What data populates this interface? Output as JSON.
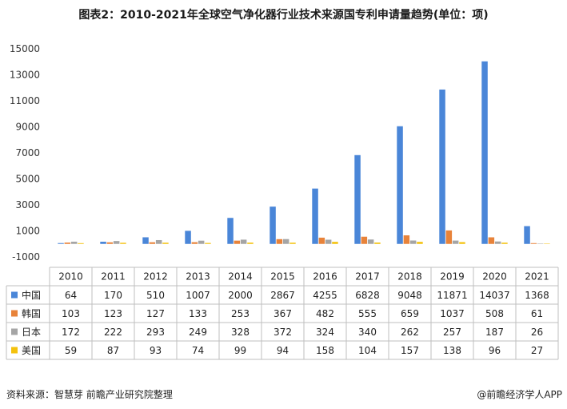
{
  "title": "图表2：2010-2021年全球空气净化器行业技术来源国专利申请量趋势(单位：项)",
  "footer": {
    "source": "资料来源：智慧芽 前瞻产业研究院整理",
    "brand": "@前瞻经济学人APP"
  },
  "colors": {
    "中国": "#4a86d8",
    "韩国": "#e8833a",
    "日本": "#a5a5a5",
    "美国": "#f4c20d"
  },
  "chart_data": {
    "type": "bar",
    "title": "图表2：2010-2021年全球空气净化器行业技术来源国专利申请量趋势(单位：项)",
    "categories": [
      "2010",
      "2011",
      "2012",
      "2013",
      "2014",
      "2015",
      "2016",
      "2017",
      "2018",
      "2019",
      "2020",
      "2021"
    ],
    "series": [
      {
        "name": "中国",
        "values": [
          64,
          170,
          510,
          1007,
          2000,
          2867,
          4255,
          6828,
          9048,
          11871,
          14037,
          1368
        ]
      },
      {
        "name": "韩国",
        "values": [
          103,
          123,
          127,
          133,
          253,
          367,
          482,
          555,
          659,
          1037,
          508,
          61
        ]
      },
      {
        "name": "日本",
        "values": [
          172,
          222,
          293,
          249,
          328,
          372,
          324,
          340,
          262,
          257,
          187,
          26
        ]
      },
      {
        "name": "美国",
        "values": [
          59,
          87,
          93,
          74,
          99,
          94,
          158,
          104,
          157,
          138,
          96,
          27
        ]
      }
    ],
    "yticks": [
      -1000,
      1000,
      3000,
      5000,
      7000,
      9000,
      11000,
      13000,
      15000
    ],
    "ytick_labels": [
      "-1000",
      "1000",
      "3000",
      "5000",
      "7000",
      "9000",
      "11000",
      "13000",
      "15000"
    ],
    "ylim": [
      -1000,
      15000
    ],
    "grid": false,
    "legend": "data-table"
  }
}
